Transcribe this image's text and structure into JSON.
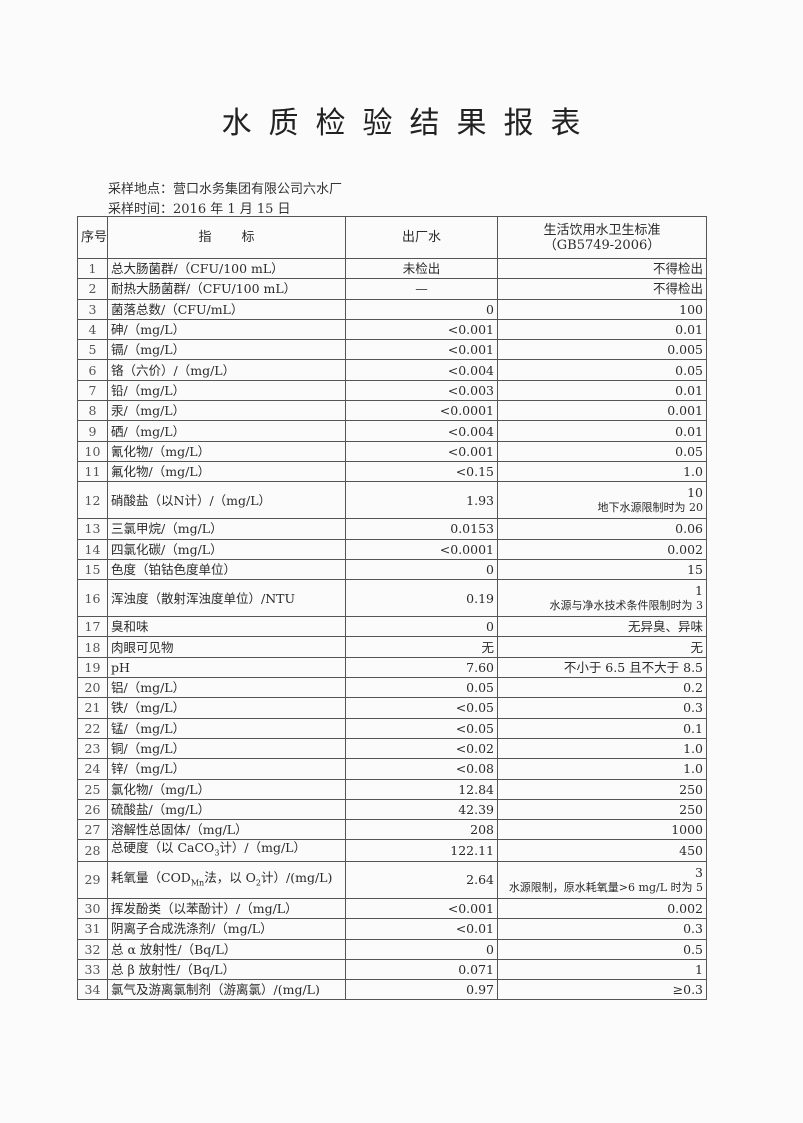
{
  "title": "水质检验结果报表",
  "sampling_location": "采样地点：营口水务集团有限公司六水厂",
  "sampling_time": "采样时间：2016 年 1 月 15 日",
  "headers": {
    "seq": "序号",
    "indicator": "指标",
    "plant_water": "出厂水",
    "standard": "生活饮用水卫生标准",
    "standard_code": "（GB5749-2006）"
  },
  "rows": [
    {
      "seq": "1",
      "indicator": "总大肠菌群/（CFU/100 mL）",
      "value": "未检出",
      "standard": "不得检出",
      "center": true
    },
    {
      "seq": "2",
      "indicator": "耐热大肠菌群/（CFU/100 mL）",
      "value": "—",
      "standard": "不得检出",
      "center": true
    },
    {
      "seq": "3",
      "indicator": "菌落总数/（CFU/mL）",
      "value": "0",
      "standard": "100"
    },
    {
      "seq": "4",
      "indicator": "砷/（mg/L）",
      "value": "<0.001",
      "standard": "0.01"
    },
    {
      "seq": "5",
      "indicator": "镉/（mg/L）",
      "value": "<0.001",
      "standard": "0.005"
    },
    {
      "seq": "6",
      "indicator": "铬（六价）/（mg/L）",
      "value": "<0.004",
      "standard": "0.05"
    },
    {
      "seq": "7",
      "indicator": "铅/（mg/L）",
      "value": "<0.003",
      "standard": "0.01"
    },
    {
      "seq": "8",
      "indicator": "汞/（mg/L）",
      "value": "<0.0001",
      "standard": "0.001"
    },
    {
      "seq": "9",
      "indicator": "硒/（mg/L）",
      "value": "<0.004",
      "standard": "0.01"
    },
    {
      "seq": "10",
      "indicator": "氰化物/（mg/L）",
      "value": "<0.001",
      "standard": "0.05"
    },
    {
      "seq": "11",
      "indicator": "氟化物/（mg/L）",
      "value": "<0.15",
      "standard": "1.0"
    },
    {
      "seq": "12",
      "indicator": "硝酸盐（以N计）/（mg/L）",
      "value": "1.93",
      "standard": "10",
      "note": "地下水源限制时为 20"
    },
    {
      "seq": "13",
      "indicator": "三氯甲烷/（mg/L）",
      "value": "0.0153",
      "standard": "0.06"
    },
    {
      "seq": "14",
      "indicator": "四氯化碳/（mg/L）",
      "value": "<0.0001",
      "standard": "0.002"
    },
    {
      "seq": "15",
      "indicator": "色度（铂钴色度单位）",
      "value": "0",
      "standard": "15"
    },
    {
      "seq": "16",
      "indicator": "浑浊度（散射浑浊度单位）/NTU",
      "value": "0.19",
      "standard": "1",
      "note": "水源与净水技术条件限制时为 3"
    },
    {
      "seq": "17",
      "indicator": "臭和味",
      "value": "0",
      "standard": "无异臭、异味"
    },
    {
      "seq": "18",
      "indicator": "肉眼可见物",
      "value": "无",
      "standard": "无"
    },
    {
      "seq": "19",
      "indicator": "pH",
      "value": "7.60",
      "standard": "不小于 6.5 且不大于 8.5"
    },
    {
      "seq": "20",
      "indicator": "铝/（mg/L）",
      "value": "0.05",
      "standard": "0.2"
    },
    {
      "seq": "21",
      "indicator": "铁/（mg/L）",
      "value": "<0.05",
      "standard": "0.3"
    },
    {
      "seq": "22",
      "indicator": "锰/（mg/L）",
      "value": "<0.05",
      "standard": "0.1"
    },
    {
      "seq": "23",
      "indicator": "铜/（mg/L）",
      "value": "<0.02",
      "standard": "1.0"
    },
    {
      "seq": "24",
      "indicator": "锌/（mg/L）",
      "value": "<0.08",
      "standard": "1.0"
    },
    {
      "seq": "25",
      "indicator": "氯化物/（mg/L）",
      "value": "12.84",
      "standard": "250"
    },
    {
      "seq": "26",
      "indicator": "硫酸盐/（mg/L）",
      "value": "42.39",
      "standard": "250"
    },
    {
      "seq": "27",
      "indicator": "溶解性总固体/（mg/L）",
      "value": "208",
      "standard": "1000"
    },
    {
      "seq": "28",
      "indicator_parts": [
        "总硬度（以 CaCO",
        "3",
        "计）/（mg/L）"
      ],
      "value": "122.11",
      "standard": "450"
    },
    {
      "seq": "29",
      "indicator_parts": [
        "耗氧量（COD",
        "Mn",
        "法，以 O",
        "2",
        "计）/(mg/L)"
      ],
      "value": "2.64",
      "standard": "3",
      "note": "水源限制，原水耗氧量>6 mg/L 时为 5"
    },
    {
      "seq": "30",
      "indicator": "挥发酚类（以苯酚计）/（mg/L）",
      "value": "<0.001",
      "standard": "0.002"
    },
    {
      "seq": "31",
      "indicator": "阴离子合成洗涤剂/（mg/L）",
      "value": "<0.01",
      "standard": "0.3"
    },
    {
      "seq": "32",
      "indicator": "总 α 放射性/（Bq/L）",
      "value": "0",
      "standard": "0.5"
    },
    {
      "seq": "33",
      "indicator": "总 β 放射性/（Bq/L）",
      "value": "0.071",
      "standard": "1"
    },
    {
      "seq": "34",
      "indicator": "氯气及游离氯制剂（游离氯）/(mg/L)",
      "value": "0.97",
      "standard": "≥0.3"
    }
  ]
}
